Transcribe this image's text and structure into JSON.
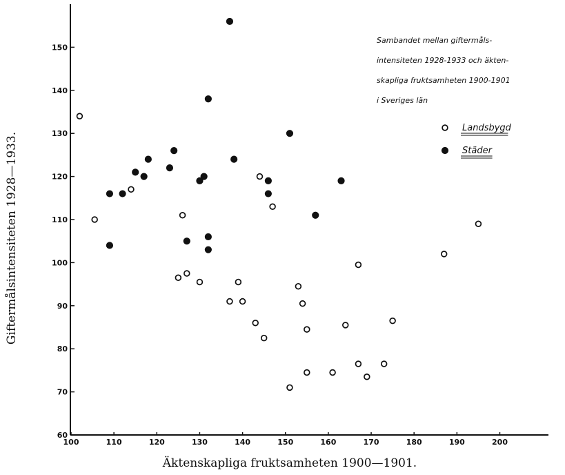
{
  "chart_data": {
    "type": "scatter",
    "title": "",
    "annotation": [
      "Sambandet mellan giftermåls-",
      "intensiteten 1928-1933 och äkten-",
      "skapliga fruktsamheten 1900-1901",
      "i Sveriges län"
    ],
    "xlabel": "Äktenskapliga fruktsamheten 1900—1901.",
    "ylabel": "Giftermålsintensiteten 1928—1933.",
    "xlim": [
      100,
      210
    ],
    "ylim": [
      60,
      160
    ],
    "xticks": [
      "100",
      "110",
      "120",
      "130",
      "140",
      "150",
      "160",
      "170",
      "180",
      "190",
      "200"
    ],
    "yticks": [
      "60",
      "70",
      "80",
      "90",
      "100",
      "110",
      "120",
      "130",
      "140",
      "150"
    ],
    "grid": false,
    "legend_position": "top-right",
    "series": [
      {
        "name": "Landsbygd",
        "marker": "open-circle",
        "color": "#111111",
        "points": [
          [
            102,
            134
          ],
          [
            105.5,
            110
          ],
          [
            114,
            117
          ],
          [
            126,
            111
          ],
          [
            127,
            97.5
          ],
          [
            125,
            96.5
          ],
          [
            130,
            95.5
          ],
          [
            139,
            95.5
          ],
          [
            137,
            91
          ],
          [
            140,
            91
          ],
          [
            143,
            86
          ],
          [
            145,
            82.5
          ],
          [
            144,
            120
          ],
          [
            147,
            113
          ],
          [
            153,
            94.5
          ],
          [
            154,
            90.5
          ],
          [
            155,
            84.5
          ],
          [
            155,
            74.5
          ],
          [
            151,
            71
          ],
          [
            161,
            74.5
          ],
          [
            164,
            85.5
          ],
          [
            167,
            99.5
          ],
          [
            167,
            76.5
          ],
          [
            169,
            73.5
          ],
          [
            173,
            76.5
          ],
          [
            175,
            86.5
          ],
          [
            187,
            102
          ],
          [
            195,
            109
          ]
        ]
      },
      {
        "name": "Städer",
        "marker": "filled-circle",
        "color": "#111111",
        "points": [
          [
            109,
            116
          ],
          [
            109,
            104
          ],
          [
            112,
            116
          ],
          [
            115,
            121
          ],
          [
            117,
            120
          ],
          [
            118,
            124
          ],
          [
            123,
            122
          ],
          [
            124,
            126
          ],
          [
            127,
            105
          ],
          [
            130,
            119
          ],
          [
            131,
            120
          ],
          [
            132,
            106
          ],
          [
            132,
            103
          ],
          [
            132,
            138
          ],
          [
            137,
            156
          ],
          [
            138,
            124
          ],
          [
            146,
            119
          ],
          [
            146,
            116
          ],
          [
            151,
            130
          ],
          [
            157,
            111
          ],
          [
            163,
            119
          ]
        ]
      }
    ]
  }
}
